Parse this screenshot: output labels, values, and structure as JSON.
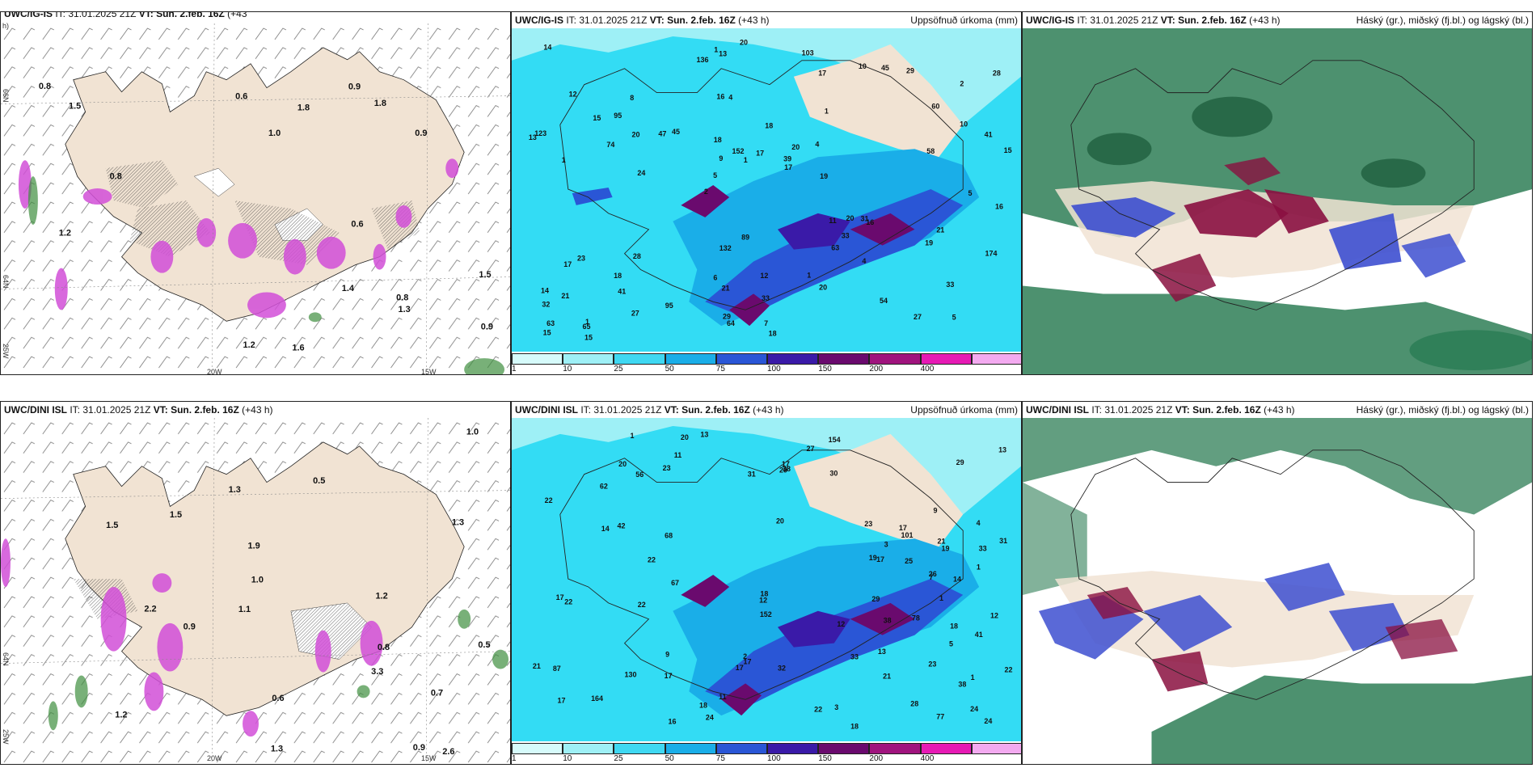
{
  "panels": {
    "tl": {
      "title_model": "UWC/IG-IS",
      "title_it": "IT: 31.01.2025 21Z",
      "title_vt": "VT: Sun. 2.feb. 16Z",
      "title_lead": "(+43",
      "title_lead2": "h)",
      "field": ""
    },
    "tm": {
      "title_model": "UWC/IG-IS",
      "title_it": "IT: 31.01.2025 21Z",
      "title_vt": "VT: Sun. 2.feb. 16Z",
      "title_lead": "(+43 h)",
      "field": "Uppsöfnuð úrkoma (mm)"
    },
    "tr": {
      "title_model": "UWC/IG-IS",
      "title_it": "IT: 31.01.2025 21Z",
      "title_vt": "VT: Sun. 2.feb. 16Z",
      "title_lead": "(+43 h)",
      "field": "Háský (gr.), miðský (fj.bl.) og lágský (bl.)"
    },
    "bl": {
      "title_model": "UWC/DINI ISL",
      "title_it": "IT: 31.01.2025 21Z",
      "title_vt": "VT: Sun. 2.feb. 16Z",
      "title_lead": "(+43 h)",
      "field": ""
    },
    "bm": {
      "title_model": "UWC/DINI ISL",
      "title_it": "IT: 31.01.2025 21Z",
      "title_vt": "VT: Sun. 2.feb. 16Z",
      "title_lead": "(+43 h)",
      "field": "Uppsöfnuð úrkoma (mm)"
    },
    "br": {
      "title_model": "UWC/DINI ISL",
      "title_it": "IT: 31.01.2025 21Z",
      "title_vt": "VT: Sun. 2.feb. 16Z",
      "title_lead": "(+43 h)",
      "field": "Háský (gr.), miðský (fj.bl.) og lágský (bl.)"
    }
  },
  "coords": {
    "lat66": "66N",
    "lat64": "64N",
    "lon25": "25W",
    "lon20": "20W",
    "lon15": "15W"
  },
  "colorbar": {
    "labels": [
      "1",
      "10",
      "25",
      "50",
      "75",
      "100",
      "150",
      "200",
      "400"
    ],
    "colors": [
      "#d6fbfb",
      "#9ef0f6",
      "#3fd8f2",
      "#1aaee8",
      "#2a56d6",
      "#3a1aa8",
      "#6a0a6e",
      "#a0147e",
      "#e61ab4",
      "#f3aaf0"
    ]
  },
  "colors": {
    "land": "#f1e3d3",
    "precip_low": "#33dcf4",
    "precip_mid": "#1a9fe6",
    "precip_high": "#2b36c8",
    "precip_max": "#7a0f6e",
    "snow": "#d24fd8",
    "high_cloud": "#2e7e56",
    "mid_cloud": "#3d4fd0",
    "low_cloud": "#8a1040"
  },
  "tl_labels": [
    "1.0",
    "1.3",
    "0.8",
    "0.9",
    "1.2",
    "0.6",
    "1.6",
    "0.9",
    "0.8",
    "1.2",
    "0.8",
    "1.8",
    "0.6",
    "1.5",
    "0.9",
    "1.8",
    "1.5",
    "1.4"
  ],
  "tm_values": [
    "5",
    "1",
    "2",
    "2",
    "1",
    "1",
    "16",
    "18",
    "23",
    "45",
    "32",
    "41",
    "4",
    "20",
    "16",
    "12",
    "13",
    "15",
    "11",
    "10",
    "5",
    "6",
    "9",
    "8",
    "10",
    "28",
    "27",
    "33",
    "31",
    "18",
    "47",
    "74",
    "63",
    "27",
    "41",
    "39",
    "63",
    "21",
    "17",
    "17",
    "60",
    "28",
    "33",
    "20",
    "18",
    "15",
    "15",
    "12",
    "29",
    "20",
    "24",
    "123",
    "95",
    "45",
    "65",
    "103",
    "136",
    "152",
    "174",
    "132",
    "95",
    "20",
    "20",
    "14",
    "14",
    "15",
    "16",
    "18",
    "33",
    "17",
    "21",
    "19",
    "21",
    "29",
    "58",
    "89",
    "54",
    "7",
    "1",
    "1",
    "5",
    "4",
    "4",
    "1",
    "19",
    "13",
    "64",
    "17"
  ],
  "bl_labels": [
    "1.9",
    "2.6",
    "0.8",
    "1.3",
    "1.2",
    "1.1",
    "0.9",
    "1.0",
    "0.9",
    "2.2",
    "1.3",
    "1.5",
    "0.5",
    "1.0",
    "0.7",
    "3.3",
    "1.5",
    "1.2",
    "0.5",
    "1.3",
    "0.6"
  ],
  "bm_values": [
    "23",
    "4",
    "1",
    "20",
    "17",
    "11",
    "21",
    "17",
    "29",
    "42",
    "33",
    "22",
    "26",
    "24",
    "87",
    "62",
    "38",
    "23",
    "17",
    "19",
    "17",
    "22",
    "22",
    "19",
    "18",
    "17",
    "27",
    "30",
    "23",
    "22",
    "22",
    "21",
    "16",
    "12",
    "18",
    "28",
    "17",
    "31",
    "77",
    "67",
    "78",
    "25",
    "29",
    "22",
    "41",
    "38",
    "164",
    "154",
    "68",
    "101",
    "130",
    "152",
    "38",
    "31",
    "33",
    "29",
    "20",
    "20",
    "18",
    "17",
    "13",
    "13",
    "24",
    "32",
    "56",
    "24",
    "21",
    "18",
    "17",
    "14",
    "9",
    "7",
    "9",
    "12",
    "2",
    "3",
    "1",
    "1",
    "1",
    "5",
    "3",
    "12",
    "13",
    "14",
    "11"
  ]
}
